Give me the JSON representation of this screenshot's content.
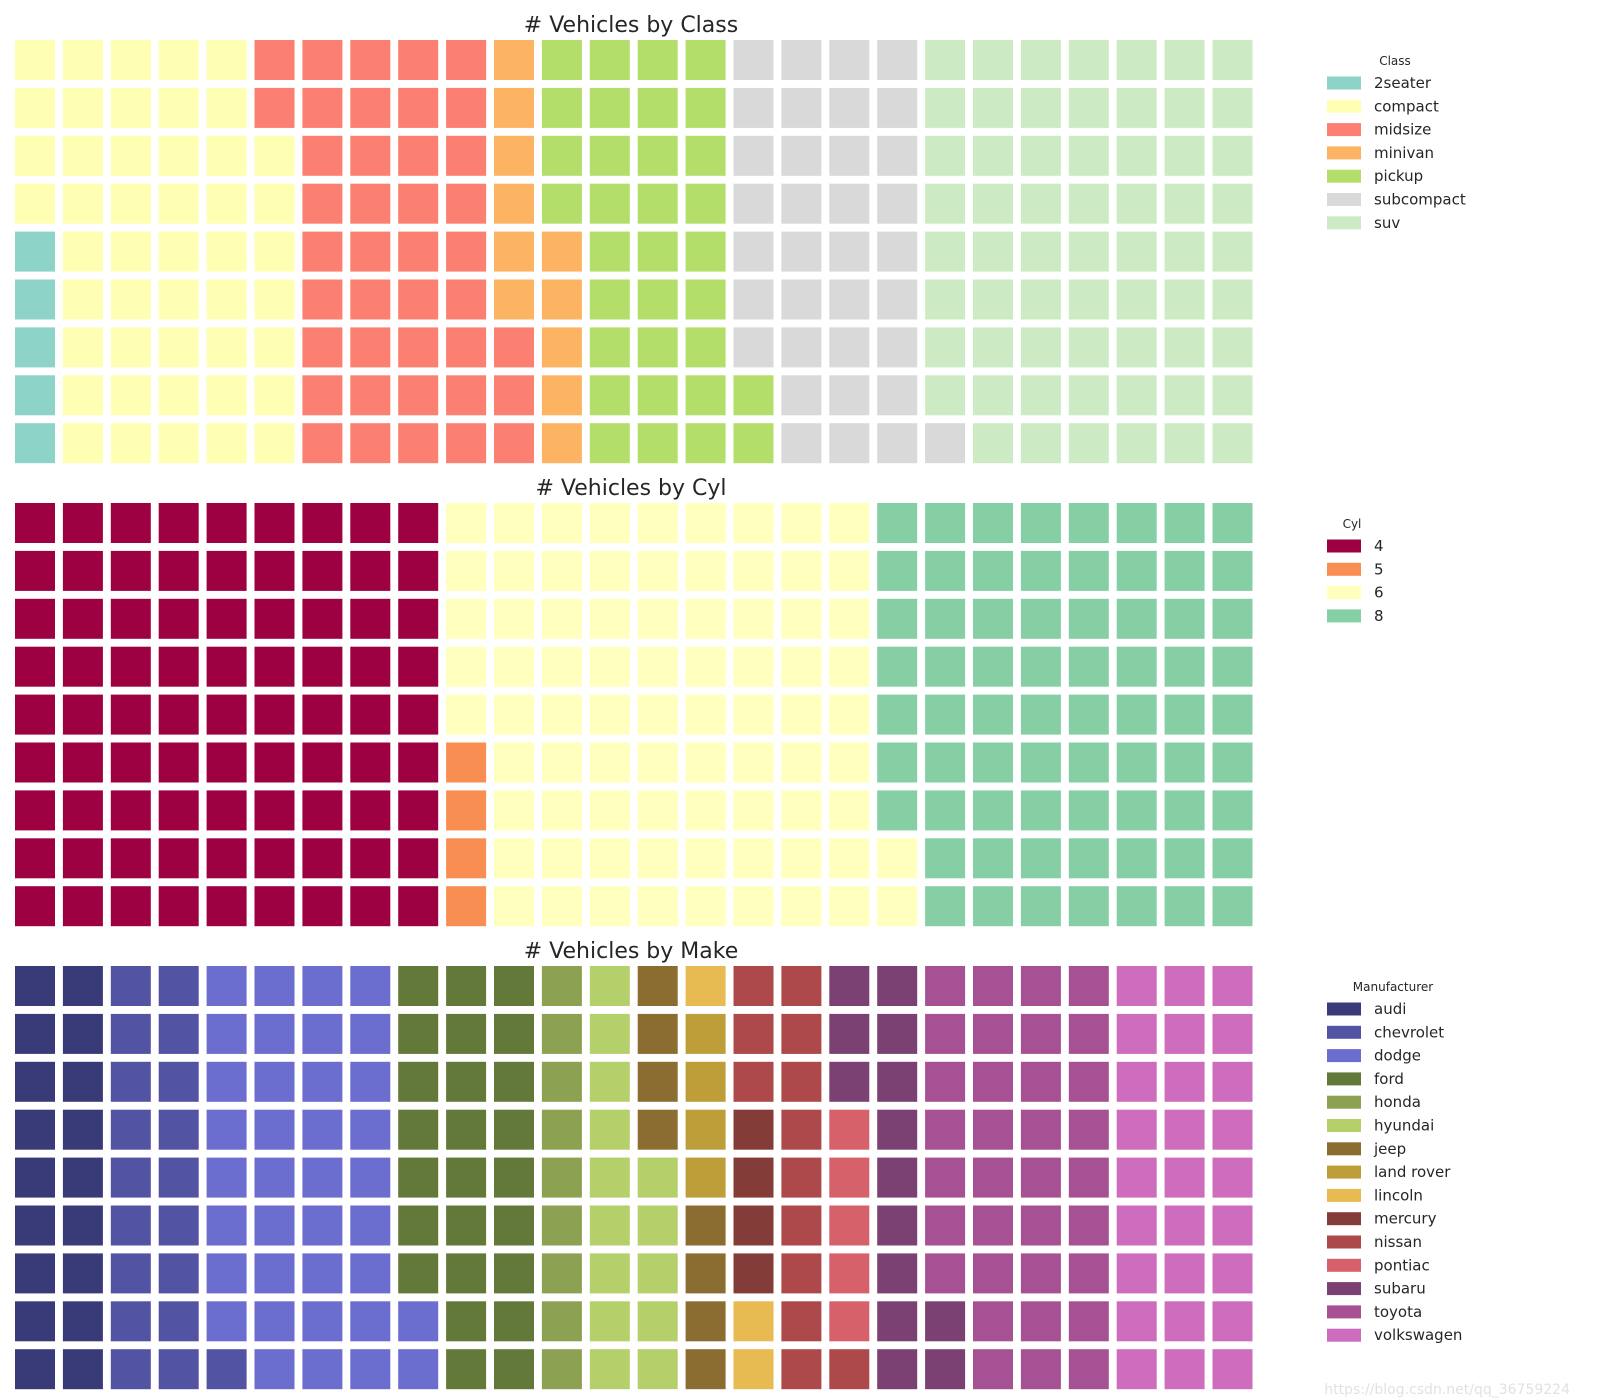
{
  "chart_data": [
    {
      "type": "waffle",
      "title": "# Vehicles by Class",
      "legend_title": "Class",
      "legend_position": "right",
      "rows": 9,
      "columns": 26,
      "categories": [
        "2seater",
        "compact",
        "midsize",
        "minivan",
        "pickup",
        "subcompact",
        "suv"
      ],
      "values": [
        5,
        47,
        41,
        11,
        33,
        35,
        62
      ],
      "colors": [
        "#8dd3c7",
        "#ffffb3",
        "#fb8072",
        "#fdb462",
        "#b3de69",
        "#d9d9d9",
        "#ccebc5"
      ]
    },
    {
      "type": "waffle",
      "title": "# Vehicles by Cyl",
      "legend_title": "Cyl",
      "legend_position": "right",
      "rows": 9,
      "columns": 26,
      "categories": [
        "4",
        "5",
        "6",
        "8"
      ],
      "values": [
        81,
        4,
        79,
        70
      ],
      "colors": [
        "#9e0142",
        "#f98e52",
        "#ffffbe",
        "#86cfa5"
      ]
    },
    {
      "type": "waffle",
      "title": "# Vehicles by Make",
      "legend_title": "Manufacturer",
      "legend_position": "right",
      "rows": 9,
      "columns": 26,
      "categories": [
        "audi",
        "chevrolet",
        "dodge",
        "ford",
        "honda",
        "hyundai",
        "jeep",
        "land rover",
        "lincoln",
        "mercury",
        "nissan",
        "pontiac",
        "subaru",
        "toyota",
        "volkswagen"
      ],
      "values": [
        18,
        19,
        37,
        25,
        9,
        14,
        8,
        4,
        3,
        4,
        13,
        5,
        14,
        34,
        27
      ],
      "colors": [
        "#393b79",
        "#5254a3",
        "#6b6ecf",
        "#637939",
        "#8ca252",
        "#b5cf6b",
        "#8c6d31",
        "#bd9e39",
        "#e7ba52",
        "#843c39",
        "#ad494a",
        "#d6616b",
        "#7b4173",
        "#a55194",
        "#ce6dbd"
      ]
    }
  ],
  "watermark": "https://blog.csdn.net/qq_36759224"
}
